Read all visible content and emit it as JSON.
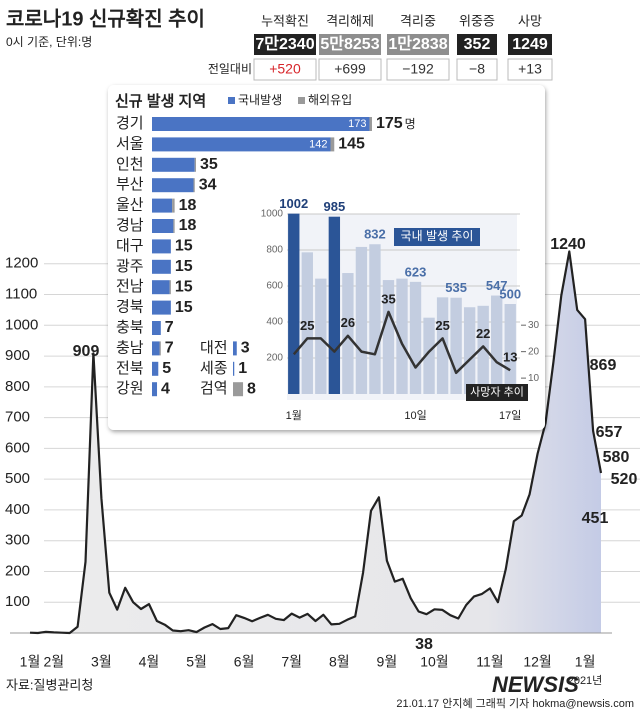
{
  "header": {
    "title": "코로나19 신규확진 추이",
    "subtitle": "0시 기준, 단위:명"
  },
  "stats": {
    "labels": [
      "누적확진",
      "격리해제",
      "격리중",
      "위중증",
      "사망"
    ],
    "values": [
      "7만2340",
      "5만8253",
      "1만2838",
      "352",
      "1249"
    ],
    "box_colors": [
      "#222222",
      "#8e8e8e",
      "#8e8e8e",
      "#222222",
      "#222222"
    ],
    "change_label": "전일대비",
    "changes": [
      "+520",
      "+699",
      "−192",
      "−8",
      "+13"
    ],
    "change_colors": [
      "#d7262b",
      "#333333",
      "#333333",
      "#333333",
      "#333333"
    ]
  },
  "chart_data": [
    {
      "type": "line",
      "categories": [
        "1월",
        null,
        null,
        "2월",
        null,
        null,
        null,
        null,
        null,
        "3월",
        null,
        null,
        null,
        null,
        null,
        "4월",
        null,
        null,
        null,
        null,
        null,
        "5월",
        null,
        null,
        null,
        null,
        null,
        "6월",
        null,
        null,
        null,
        null,
        null,
        "7월",
        null,
        null,
        null,
        null,
        null,
        "8월",
        null,
        null,
        null,
        null,
        null,
        "9월",
        null,
        null,
        null,
        null,
        null,
        "10월",
        null,
        null,
        null,
        null,
        null,
        null,
        "11월",
        null,
        null,
        null,
        null,
        null,
        "12월",
        null,
        null,
        null,
        null,
        null,
        "1월",
        null,
        null
      ],
      "values": [
        1,
        0,
        4,
        2,
        1,
        0,
        20,
        231,
        909,
        438,
        131,
        76,
        147,
        100,
        78,
        94,
        39,
        27,
        8,
        6,
        9,
        3,
        18,
        29,
        13,
        16,
        58,
        49,
        38,
        49,
        59,
        46,
        42,
        63,
        50,
        62,
        39,
        59,
        28,
        30,
        43,
        54,
        197,
        397,
        441,
        235,
        167,
        176,
        113,
        70,
        61,
        77,
        75,
        58,
        47,
        91,
        119,
        127,
        145,
        100,
        208,
        363,
        382,
        451,
        583,
        682,
        880,
        1097,
        1240,
        1050,
        1020,
        657,
        520
      ],
      "color": "#222222",
      "ylim": [
        0,
        1300
      ],
      "yticks": [
        100,
        200,
        300,
        400,
        500,
        600,
        700,
        800,
        900,
        1000,
        1100,
        1200
      ],
      "grid": true,
      "annotations": [
        909,
        1240,
        869,
        657,
        580,
        520,
        451,
        38
      ],
      "note": "2021년"
    },
    {
      "type": "bar",
      "orientation": "horizontal",
      "stacked": true,
      "title": "신규 발생 지역",
      "categories": [
        "경기",
        "서울",
        "인천",
        "부산",
        "울산",
        "경남",
        "대구",
        "광주",
        "전남",
        "경북",
        "충북",
        "충남",
        "전북",
        "강원",
        "대전",
        "세종",
        "검역"
      ],
      "series": [
        {
          "name": "국내발생",
          "color": "#4a74c4",
          "values": [
            173,
            142,
            34,
            33,
            16,
            17,
            15,
            15,
            14,
            15,
            7,
            6,
            5,
            4,
            3,
            1,
            0
          ]
        },
        {
          "name": "해외유입",
          "color": "#9a9a9a",
          "values": [
            2,
            3,
            1,
            1,
            2,
            1,
            0,
            0,
            1,
            0,
            0,
            1,
            0,
            0,
            0,
            0,
            8
          ]
        }
      ],
      "totals": [
        175,
        145,
        35,
        34,
        18,
        18,
        15,
        15,
        15,
        15,
        7,
        7,
        5,
        4,
        3,
        1,
        8
      ],
      "unit": "명"
    },
    {
      "type": "bar",
      "categories": [
        "1월",
        null,
        null,
        null,
        null,
        null,
        null,
        null,
        null,
        "10일",
        null,
        null,
        null,
        null,
        null,
        null,
        "17일"
      ],
      "series": [
        {
          "name": "국내 발생 추이",
          "values": [
            1002,
            787,
            641,
            985,
            672,
            817,
            832,
            633,
            641,
            623,
            424,
            537,
            535,
            482,
            490,
            547,
            500
          ],
          "colors": [
            "#2b5597",
            "#c3cde0",
            "#c3cde0",
            "#2b5597",
            "#c3cde0",
            "#c3cde0",
            "#c3cde0",
            "#c3cde0",
            "#c3cde0",
            "#c3cde0",
            "#c3cde0",
            "#c3cde0",
            "#c3cde0",
            "#c3cde0",
            "#c3cde0",
            "#c3cde0",
            "#c3cde0"
          ]
        },
        {
          "name": "사망자 추이",
          "type": "line",
          "axis": "y2",
          "color": "#333333",
          "values": [
            19,
            25,
            25,
            20,
            26,
            20,
            19,
            35,
            23,
            14,
            20,
            25,
            12,
            17,
            22,
            16,
            13
          ]
        }
      ],
      "ylim": [
        0,
        1000
      ],
      "yticks": [
        200,
        400,
        600,
        800,
        1000
      ],
      "y2lim": [
        4,
        72
      ],
      "y2ticks": [
        10,
        20,
        30
      ],
      "grid": true
    }
  ],
  "footer": {
    "source": "자료:질병관리청",
    "credit": "21.01.17 안지혜 그래픽 기자 hokma@newsis.com",
    "logo": "NEWSIS"
  }
}
